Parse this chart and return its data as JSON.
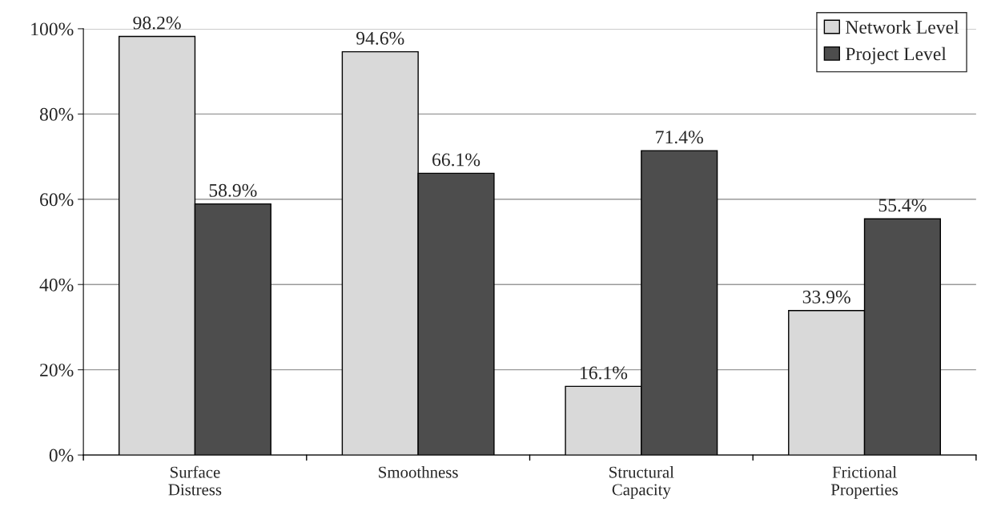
{
  "chart_data": {
    "type": "bar",
    "categories": [
      "Surface\nDistress",
      "Smoothness",
      "Structural\nCapacity",
      "Frictional\nProperties"
    ],
    "series": [
      {
        "name": "Network Level",
        "color": "#d9d9d9",
        "values": [
          98.2,
          94.6,
          16.1,
          33.9
        ],
        "value_labels": [
          "98.2%",
          "94.6%",
          "16.1%",
          "33.9%"
        ]
      },
      {
        "name": "Project Level",
        "color": "#4d4d4d",
        "values": [
          58.9,
          66.1,
          71.4,
          55.4
        ],
        "value_labels": [
          "58.9%",
          "66.1%",
          "71.4%",
          "55.4%"
        ]
      }
    ],
    "ylim": [
      0,
      100
    ],
    "yticks": [
      {
        "value": 0,
        "label": "0%"
      },
      {
        "value": 20,
        "label": "20%"
      },
      {
        "value": 40,
        "label": "40%"
      },
      {
        "value": 60,
        "label": "60%"
      },
      {
        "value": 80,
        "label": "80%"
      },
      {
        "value": 100,
        "label": "100%"
      }
    ],
    "grid": "y",
    "legend": "top right"
  }
}
